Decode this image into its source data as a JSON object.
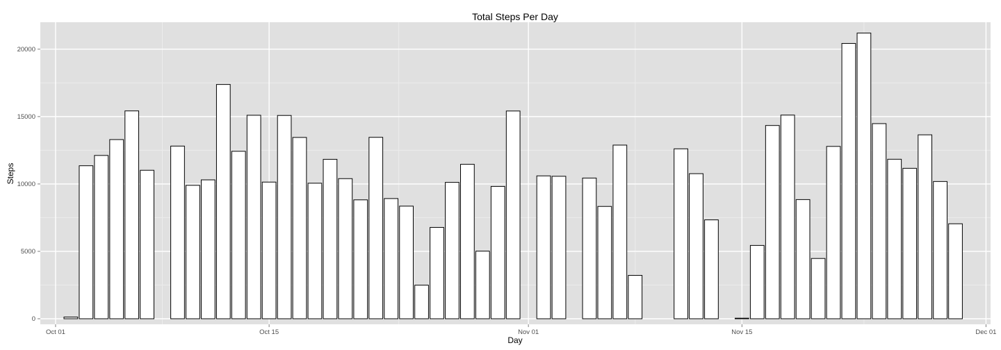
{
  "colors": {
    "panel_background": "#e0e0e0",
    "grid_major": "#ffffff",
    "grid_minor": "#ececec",
    "bar_fill": "#ffffff",
    "bar_outline": "#000000",
    "tick_text": "#4d4d4d"
  },
  "chart_data": {
    "type": "bar",
    "title": "Total Steps Per Day",
    "xlabel": "Day",
    "ylabel": "Steps",
    "grid": true,
    "legend": "none",
    "xlim": [
      "2012-09-30",
      "2012-12-01"
    ],
    "ylim": [
      0,
      22000
    ],
    "x_ticks": [
      {
        "date": "2012-10-01",
        "label": "Oct 01"
      },
      {
        "date": "2012-10-15",
        "label": "Oct 15"
      },
      {
        "date": "2012-11-01",
        "label": "Nov 01"
      },
      {
        "date": "2012-11-15",
        "label": "Nov 15"
      },
      {
        "date": "2012-12-01",
        "label": "Dec 01"
      }
    ],
    "y_ticks": [
      0,
      5000,
      10000,
      15000,
      20000
    ],
    "y_tick_labels": [
      "0",
      "5000",
      "10000",
      "15000",
      "20000"
    ],
    "categories": [
      "2012-10-02",
      "2012-10-03",
      "2012-10-04",
      "2012-10-05",
      "2012-10-06",
      "2012-10-07",
      "2012-10-09",
      "2012-10-10",
      "2012-10-11",
      "2012-10-12",
      "2012-10-13",
      "2012-10-14",
      "2012-10-15",
      "2012-10-16",
      "2012-10-17",
      "2012-10-18",
      "2012-10-19",
      "2012-10-20",
      "2012-10-21",
      "2012-10-22",
      "2012-10-23",
      "2012-10-24",
      "2012-10-25",
      "2012-10-26",
      "2012-10-27",
      "2012-10-28",
      "2012-10-29",
      "2012-10-30",
      "2012-10-31",
      "2012-11-02",
      "2012-11-03",
      "2012-11-05",
      "2012-11-06",
      "2012-11-07",
      "2012-11-08",
      "2012-11-11",
      "2012-11-12",
      "2012-11-13",
      "2012-11-15",
      "2012-11-16",
      "2012-11-17",
      "2012-11-18",
      "2012-11-19",
      "2012-11-20",
      "2012-11-21",
      "2012-11-22",
      "2012-11-23",
      "2012-11-24",
      "2012-11-25",
      "2012-11-26",
      "2012-11-27",
      "2012-11-28",
      "2012-11-29"
    ],
    "values": [
      126,
      11352,
      12116,
      13294,
      15420,
      11015,
      12811,
      9900,
      10304,
      17382,
      12426,
      15098,
      10139,
      15084,
      13452,
      10056,
      11829,
      10395,
      8821,
      13460,
      8918,
      8355,
      2492,
      6778,
      10119,
      11458,
      5018,
      9819,
      15414,
      10600,
      10571,
      10439,
      8334,
      12883,
      3219,
      12608,
      10765,
      7336,
      41,
      5441,
      14339,
      15110,
      8841,
      4472,
      12787,
      20427,
      21194,
      14478,
      11834,
      11162,
      13646,
      10183,
      7047
    ]
  }
}
